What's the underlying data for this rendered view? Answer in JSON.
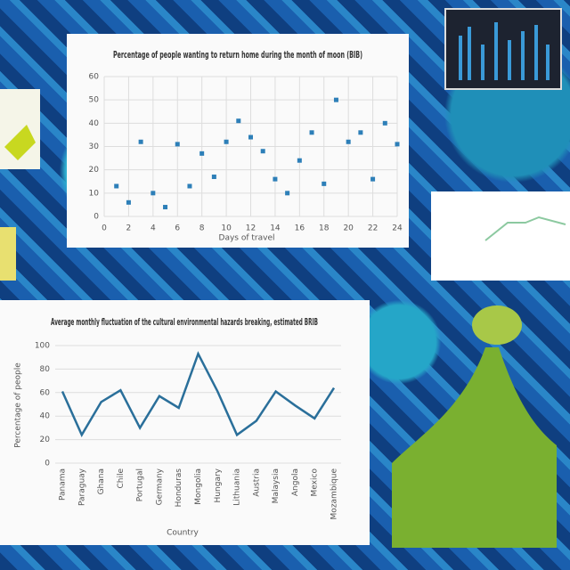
{
  "chart_data": [
    {
      "type": "scatter",
      "title": "Percentage of people wanting to return home during the month of moon (BIB)",
      "x_label": "Days of travel",
      "x": [
        1,
        2,
        3,
        4,
        5,
        6,
        7,
        8,
        9,
        10,
        11,
        12,
        13,
        14,
        15,
        16,
        17,
        18,
        19,
        20,
        21,
        22,
        23,
        24
      ],
      "values": [
        13,
        6,
        32,
        10,
        4,
        31,
        13,
        27,
        17,
        32,
        41,
        34,
        28,
        16,
        10,
        24,
        36,
        14,
        50,
        32,
        36,
        16,
        40,
        31
      ],
      "color": "#2d7fb8",
      "xlim": [
        0,
        24
      ],
      "xticks": [
        0,
        2,
        4,
        6,
        8,
        10,
        12,
        14,
        16,
        18,
        20,
        22,
        24
      ],
      "ylim": [
        0,
        60
      ],
      "yticks": [
        0,
        10,
        20,
        30,
        40,
        50,
        60
      ],
      "grid": true
    },
    {
      "type": "line",
      "title": "Average monthly fluctuation of the cultural environmental hazards breaking, estimated BRIB",
      "x_label": "Country",
      "y_label": "Percentage of people",
      "categories": [
        "Panama",
        "Paraguay",
        "Ghana",
        "Chile",
        "Portugal",
        "Germany",
        "Honduras",
        "Mongolia",
        "Hungary",
        "Lithuania",
        "Austria",
        "Malaysia",
        "Angola",
        "Mexico",
        "Mozambique"
      ],
      "values": [
        61,
        24,
        52,
        62,
        30,
        57,
        47,
        93,
        61,
        24,
        36,
        61,
        49,
        38,
        64
      ],
      "color": "#2a6f9a",
      "ylim": [
        0,
        100
      ],
      "yticks": [
        0,
        20,
        40,
        60,
        80,
        100
      ],
      "grid": true
    }
  ]
}
